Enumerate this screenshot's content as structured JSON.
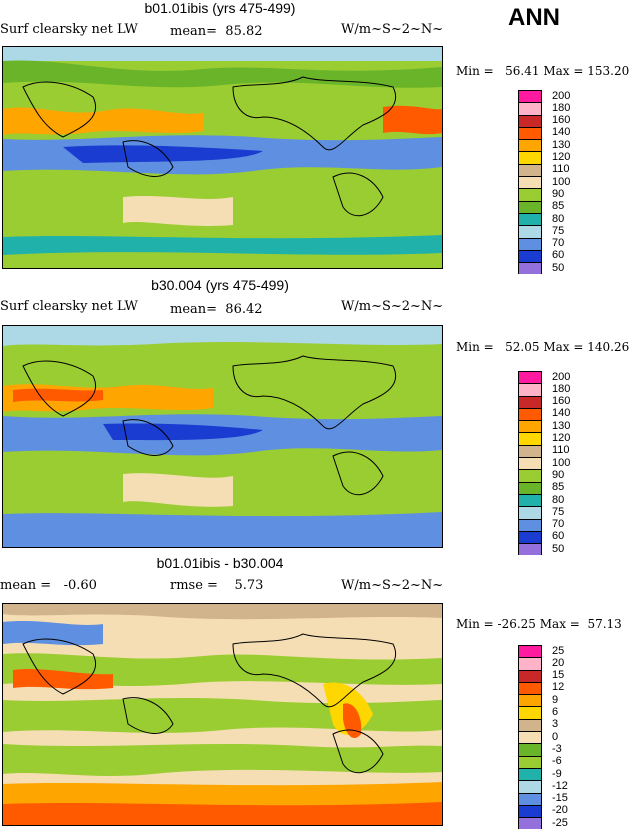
{
  "badge": "ANN",
  "panels": [
    {
      "title": "b01.01ibis (yrs 475-499)",
      "left": "Surf clearsky net LW",
      "mid": "mean=  85.82",
      "units": "W/m~S~2~N~",
      "minmax": "Min =   56.41 Max = 153.20",
      "legend_labels": [
        "200",
        "180",
        "160",
        "140",
        "130",
        "120",
        "110",
        "100",
        "90",
        "85",
        "80",
        "75",
        "70",
        "60",
        "50"
      ],
      "legend_colors": [
        "#ff1aa0",
        "#ffb3c8",
        "#c82828",
        "#ff5a00",
        "#ffa500",
        "#ffd700",
        "#d2b48c",
        "#f5deb3",
        "#9acd32",
        "#6ab42a",
        "#20b2aa",
        "#add8e6",
        "#5f8fe0",
        "#1a3cd0",
        "#9370db"
      ]
    },
    {
      "title": "b30.004 (yrs 475-499)",
      "left": "Surf clearsky net LW",
      "mid": "mean=  86.42",
      "units": "W/m~S~2~N~",
      "minmax": "Min =   52.05 Max = 140.26",
      "legend_labels": [
        "200",
        "180",
        "160",
        "140",
        "130",
        "120",
        "110",
        "100",
        "90",
        "85",
        "80",
        "75",
        "70",
        "60",
        "50"
      ],
      "legend_colors": [
        "#ff1aa0",
        "#ffb3c8",
        "#c82828",
        "#ff5a00",
        "#ffa500",
        "#ffd700",
        "#d2b48c",
        "#f5deb3",
        "#9acd32",
        "#6ab42a",
        "#20b2aa",
        "#add8e6",
        "#5f8fe0",
        "#1a3cd0",
        "#9370db"
      ]
    },
    {
      "title": "b01.01ibis - b30.004",
      "left": "mean =   -0.60",
      "mid": "rmse =    5.73",
      "units": "W/m~S~2~N~",
      "minmax": "Min = -26.25 Max =  57.13",
      "legend_labels": [
        "25",
        "20",
        "15",
        "12",
        "9",
        "6",
        "3",
        "0",
        "-3",
        "-6",
        "-9",
        "-12",
        "-15",
        "-20",
        "-25"
      ],
      "legend_colors": [
        "#ff1aa0",
        "#ffb3c8",
        "#c82828",
        "#ff5a00",
        "#ffa500",
        "#ffd700",
        "#d2b48c",
        "#f5deb3",
        "#6ab42a",
        "#9acd32",
        "#20b2aa",
        "#add8e6",
        "#5f8fe0",
        "#1a3cd0",
        "#9370db"
      ]
    }
  ]
}
